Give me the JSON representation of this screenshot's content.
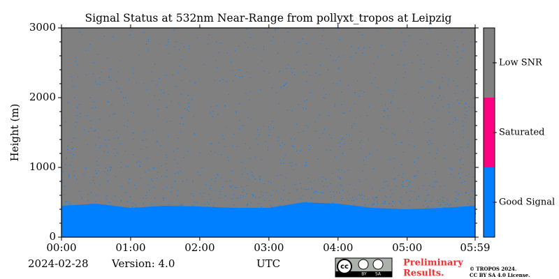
{
  "chart_data": {
    "type": "area",
    "title": "Signal Status at 532nm Near-Range from pollyxt_tropos at Leipzig",
    "y_label": "Height (m)",
    "x_label": "UTC",
    "date": "2024-02-28",
    "version": "Version: 4.0",
    "background_color": "#808080",
    "good_signal_top": {
      "x": [
        0,
        30,
        60,
        90,
        120,
        150,
        180,
        210,
        240,
        270,
        300,
        330,
        359
      ],
      "values": [
        450,
        480,
        420,
        450,
        440,
        420,
        420,
        500,
        480,
        420,
        400,
        420,
        450
      ],
      "color": "#0080ff"
    },
    "xlim": [
      0,
      359
    ],
    "ylim": [
      0,
      3000
    ],
    "xticks": [
      {
        "value": 0,
        "label": "00:00"
      },
      {
        "value": 60,
        "label": "01:00"
      },
      {
        "value": 120,
        "label": "02:00"
      },
      {
        "value": 180,
        "label": "03:00"
      },
      {
        "value": 240,
        "label": "04:00"
      },
      {
        "value": 300,
        "label": "05:00"
      },
      {
        "value": 359,
        "label": "05:59"
      }
    ],
    "yticks": [
      0,
      1000,
      2000,
      3000
    ],
    "colorbar": {
      "categories": [
        "Good Signal",
        "Saturated",
        "Low SNR"
      ],
      "colors": [
        "#0080ff",
        "#ff0080",
        "#808080"
      ]
    },
    "notice": [
      "Preliminary",
      "Results."
    ],
    "license": [
      "© TROPOS 2024.",
      "CC BY SA 4.0 License."
    ],
    "logo": {
      "cc": "cc",
      "by": "BY",
      "sa": "SA"
    }
  }
}
